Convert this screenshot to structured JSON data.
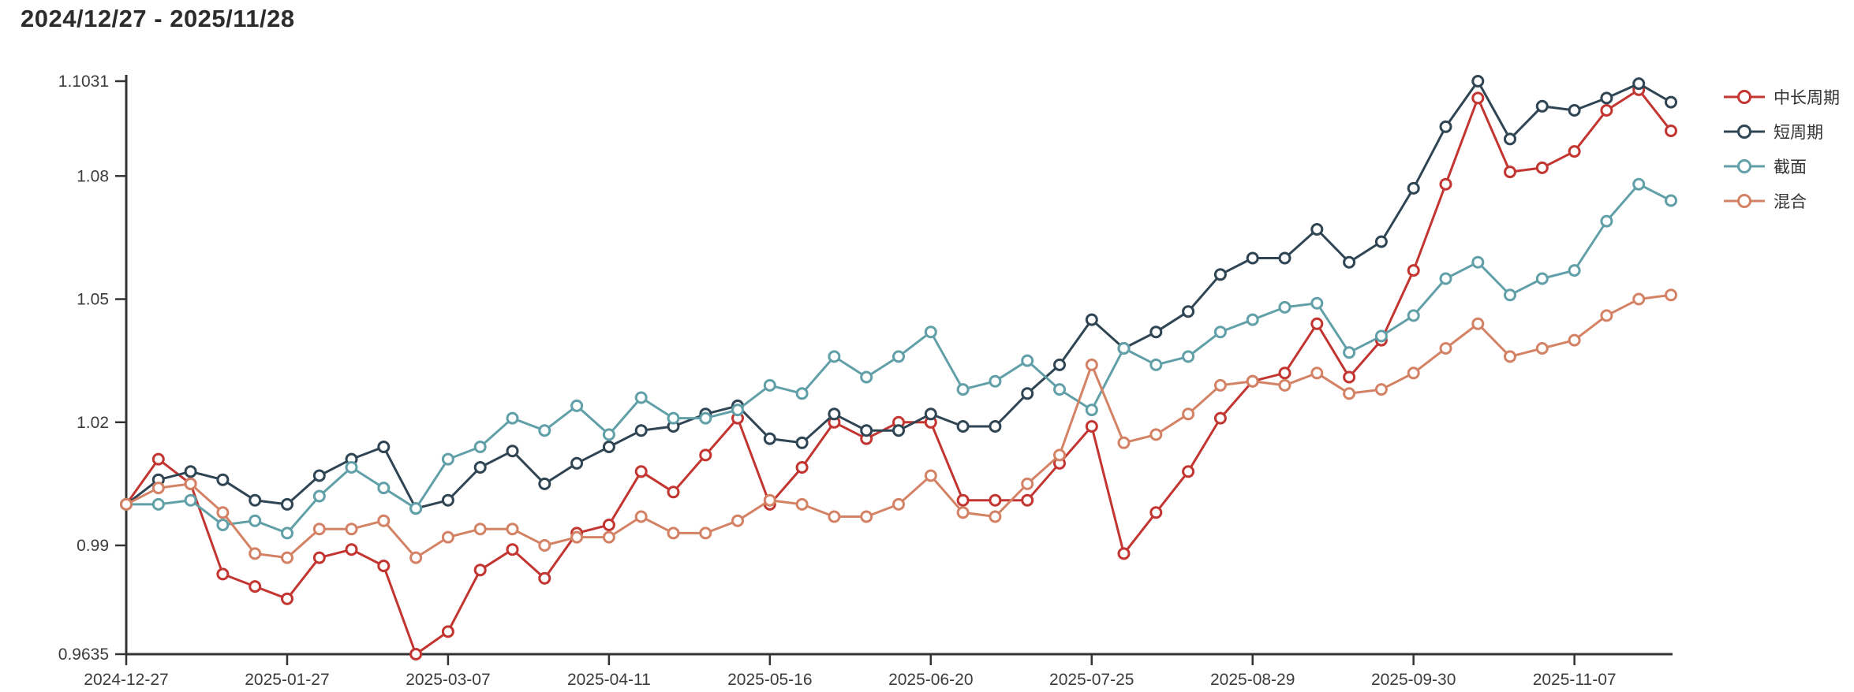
{
  "title": "2024/12/27 - 2025/11/28",
  "legend": {
    "position": "right",
    "items": [
      {
        "key": "mid-long-cycle",
        "label": "中长周期",
        "color": "#c23531"
      },
      {
        "key": "short-cycle",
        "label": "短周期",
        "color": "#2f4554"
      },
      {
        "key": "cross-section",
        "label": "截面",
        "color": "#61a0a8"
      },
      {
        "key": "mixed",
        "label": "混合",
        "color": "#d48265"
      }
    ]
  },
  "axis_colors": {
    "axis_line": "#333333",
    "tick_label": "#3c3c3c"
  },
  "chart_data": {
    "type": "line",
    "title": "2024/12/27 - 2025/11/28",
    "grid": false,
    "background": "#ffffff",
    "marker_style": "empty-circle",
    "legend_position": "right",
    "ylim": [
      0.9635,
      1.1031
    ],
    "y_tick_labels": [
      "1.1031",
      "1.08",
      "1.05",
      "1.02",
      "0.99",
      "0.9635"
    ],
    "y_tick_values": [
      1.1031,
      1.08,
      1.05,
      1.02,
      0.99,
      0.9635
    ],
    "num_points": 49,
    "x_tick_indices": [
      0,
      5,
      10,
      15,
      20,
      25,
      30,
      35,
      40,
      45
    ],
    "x_tick_labels": [
      "2024-12-27",
      "2025-01-27",
      "2025-03-07",
      "2025-04-11",
      "2025-05-16",
      "2025-06-20",
      "2025-07-25",
      "2025-08-29",
      "2025-09-30",
      "2025-11-07"
    ],
    "series": [
      {
        "name": "中长周期",
        "key": "mid-long-cycle",
        "color": "#c23531",
        "values": [
          1.0,
          1.011,
          1.005,
          0.983,
          0.98,
          0.977,
          0.987,
          0.989,
          0.985,
          0.9635,
          0.969,
          0.984,
          0.989,
          0.982,
          0.993,
          0.995,
          1.008,
          1.003,
          1.012,
          1.021,
          1.0,
          1.009,
          1.02,
          1.016,
          1.02,
          1.02,
          1.001,
          1.001,
          1.001,
          1.01,
          1.019,
          0.988,
          0.998,
          1.008,
          1.021,
          1.03,
          1.032,
          1.044,
          1.031,
          1.04,
          1.057,
          1.078,
          1.099,
          1.081,
          1.082,
          1.086,
          1.096,
          1.101,
          1.091
        ]
      },
      {
        "name": "短周期",
        "key": "short-cycle",
        "color": "#2f4554",
        "values": [
          1.0,
          1.006,
          1.008,
          1.006,
          1.001,
          1.0,
          1.007,
          1.011,
          1.014,
          0.999,
          1.001,
          1.009,
          1.013,
          1.005,
          1.01,
          1.014,
          1.018,
          1.019,
          1.022,
          1.024,
          1.016,
          1.015,
          1.022,
          1.018,
          1.018,
          1.022,
          1.019,
          1.019,
          1.027,
          1.034,
          1.045,
          1.038,
          1.042,
          1.047,
          1.056,
          1.06,
          1.06,
          1.067,
          1.059,
          1.064,
          1.077,
          1.092,
          1.1031,
          1.089,
          1.097,
          1.096,
          1.099,
          1.1025,
          1.098
        ]
      },
      {
        "name": "截面",
        "key": "cross-section",
        "color": "#61a0a8",
        "values": [
          1.0,
          1.0,
          1.001,
          0.995,
          0.996,
          0.993,
          1.002,
          1.009,
          1.004,
          0.999,
          1.011,
          1.014,
          1.021,
          1.018,
          1.024,
          1.017,
          1.026,
          1.021,
          1.021,
          1.023,
          1.029,
          1.027,
          1.036,
          1.031,
          1.036,
          1.042,
          1.028,
          1.03,
          1.035,
          1.028,
          1.023,
          1.038,
          1.034,
          1.036,
          1.042,
          1.045,
          1.048,
          1.049,
          1.037,
          1.041,
          1.046,
          1.055,
          1.059,
          1.051,
          1.055,
          1.057,
          1.069,
          1.078,
          1.074
        ]
      },
      {
        "name": "混合",
        "key": "mixed",
        "color": "#d48265",
        "values": [
          1.0,
          1.004,
          1.005,
          0.998,
          0.988,
          0.987,
          0.994,
          0.994,
          0.996,
          0.987,
          0.992,
          0.994,
          0.994,
          0.99,
          0.992,
          0.992,
          0.997,
          0.993,
          0.993,
          0.996,
          1.001,
          1.0,
          0.997,
          0.997,
          1.0,
          1.007,
          0.998,
          0.997,
          1.005,
          1.012,
          1.034,
          1.015,
          1.017,
          1.022,
          1.029,
          1.03,
          1.029,
          1.032,
          1.027,
          1.028,
          1.032,
          1.038,
          1.044,
          1.036,
          1.038,
          1.04,
          1.046,
          1.05,
          1.051
        ]
      }
    ]
  }
}
